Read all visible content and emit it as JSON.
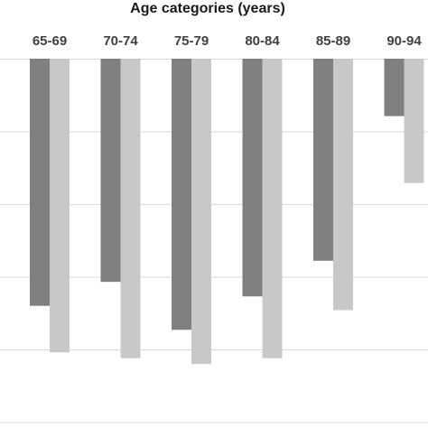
{
  "chart_data": {
    "type": "bar",
    "title": "Age categories (years)",
    "categories": [
      "65-69",
      "70-74",
      "75-79",
      "80-84",
      "85-89",
      "90-94"
    ],
    "series": [
      {
        "values": [
          -3.4,
          -3.07,
          -3.73,
          -3.27,
          -2.78,
          -0.79
        ]
      },
      {
        "values": [
          -4.04,
          -4.12,
          -4.2,
          -4.12,
          -3.46,
          -1.71
        ]
      }
    ],
    "ylim": [
      -5,
      0
    ],
    "grid": true,
    "colors": [
      "#808080",
      "#c8c8c8"
    ]
  }
}
